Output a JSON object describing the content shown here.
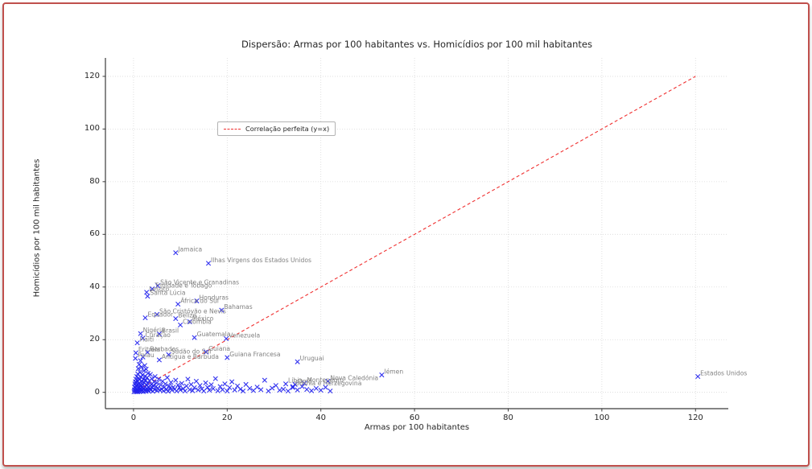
{
  "frame": {
    "border_color": "#c0504d"
  },
  "chart_data": {
    "type": "scatter",
    "title": "Dispersão: Armas por 100 habitantes vs. Homicídios por 100 mil habitantes",
    "xlabel": "Armas por 100 habitantes",
    "ylabel": "Homicídios por 100 mil habitantes",
    "xlim": [
      -6,
      127
    ],
    "ylim": [
      -6.2,
      127
    ],
    "xticks": [
      0,
      20,
      40,
      60,
      80,
      100,
      120
    ],
    "yticks": [
      0,
      20,
      40,
      60,
      80,
      100,
      120
    ],
    "grid": true,
    "legend_position": "upper left",
    "marker": "x",
    "marker_color": "#2222ee",
    "label_color": "#808080",
    "grid_color": "#d9d9d9",
    "axis_color": "#3b3b3b",
    "reference_line": {
      "label": "Correlação perfeita (y=x)",
      "from": [
        0,
        0
      ],
      "to": [
        120,
        120
      ],
      "color": "#f03030",
      "style": "dashed"
    },
    "labeled_points": [
      {
        "name": "Jamaica",
        "x": 9,
        "y": 53
      },
      {
        "name": "Ilhas Virgens dos Estados Unidos",
        "x": 16,
        "y": 49
      },
      {
        "name": "São Vicente e Granadinas",
        "x": 5.2,
        "y": 40.5
      },
      {
        "name": "Trinidade e Tobago",
        "x": 4,
        "y": 39.3
      },
      {
        "name": "Lesoto",
        "x": 2.8,
        "y": 38
      },
      {
        "name": "Santa Lúcia",
        "x": 3,
        "y": 36.5
      },
      {
        "name": "Honduras",
        "x": 13.5,
        "y": 34.7
      },
      {
        "name": "África do Sul",
        "x": 9.5,
        "y": 33.5
      },
      {
        "name": "Bahamas",
        "x": 18.8,
        "y": 31.2
      },
      {
        "name": "São Cristóvão e Nevis",
        "x": 5,
        "y": 29.6
      },
      {
        "name": "Equador",
        "x": 2.5,
        "y": 28.3
      },
      {
        "name": "Belize",
        "x": 9,
        "y": 28
      },
      {
        "name": "México",
        "x": 12,
        "y": 26.8
      },
      {
        "name": "Colômbia",
        "x": 10,
        "y": 25.6
      },
      {
        "name": "Nigéria",
        "x": 1.5,
        "y": 22.3
      },
      {
        "name": "Brasil",
        "x": 5.5,
        "y": 22.2
      },
      {
        "name": "Curaçao",
        "x": 2,
        "y": 20.6
      },
      {
        "name": "Guatemala",
        "x": 13,
        "y": 20.8
      },
      {
        "name": "Venezuela",
        "x": 19.8,
        "y": 20.4
      },
      {
        "name": "Haiti",
        "x": 0.8,
        "y": 18.8
      },
      {
        "name": "Eritreia",
        "x": 0.5,
        "y": 15
      },
      {
        "name": "Barbados",
        "x": 3,
        "y": 15.2
      },
      {
        "name": "Sudão do Sul",
        "x": 7.5,
        "y": 14.3
      },
      {
        "name": "Guiana",
        "x": 15.5,
        "y": 15.3
      },
      {
        "name": "Palau",
        "x": 0.4,
        "y": 12.9
      },
      {
        "name": "Antígua e Barbuda",
        "x": 5.5,
        "y": 12.3
      },
      {
        "name": "Guiana Francesa",
        "x": 20,
        "y": 13.2
      },
      {
        "name": "Uruguai",
        "x": 35,
        "y": 11.6
      },
      {
        "name": "Iémen",
        "x": 53,
        "y": 6.6
      },
      {
        "name": "Estados Unidos",
        "x": 120.5,
        "y": 6
      },
      {
        "name": "Nova Caledónia",
        "x": 41.5,
        "y": 4.2
      },
      {
        "name": "Líbia",
        "x": 32.5,
        "y": 3.2
      },
      {
        "name": "Omã",
        "x": 34.5,
        "y": 3
      },
      {
        "name": "Montenegro",
        "x": 36.5,
        "y": 3.4
      },
      {
        "name": "Bósnia e Herzegovina",
        "x": 34,
        "y": 2.2
      }
    ],
    "unlabeled_points": [
      [
        0.1,
        0.2
      ],
      [
        0.2,
        1
      ],
      [
        0.2,
        2
      ],
      [
        0.3,
        3.2
      ],
      [
        0.3,
        0.5
      ],
      [
        0.4,
        1.8
      ],
      [
        0.4,
        4
      ],
      [
        0.5,
        0.2
      ],
      [
        0.5,
        2.6
      ],
      [
        0.5,
        5
      ],
      [
        0.6,
        1.2
      ],
      [
        0.6,
        3.6
      ],
      [
        0.7,
        0.4
      ],
      [
        0.7,
        2.2
      ],
      [
        0.7,
        6
      ],
      [
        0.8,
        1
      ],
      [
        0.8,
        4.4
      ],
      [
        0.9,
        0.2
      ],
      [
        0.9,
        2.8
      ],
      [
        0.9,
        7
      ],
      [
        1,
        1.6
      ],
      [
        1,
        5.4
      ],
      [
        1,
        9
      ],
      [
        1.1,
        0.6
      ],
      [
        1.1,
        3.4
      ],
      [
        1.2,
        2
      ],
      [
        1.2,
        10.6
      ],
      [
        1.3,
        0.3
      ],
      [
        1.3,
        4.8
      ],
      [
        1.4,
        1.4
      ],
      [
        1.4,
        7.6
      ],
      [
        1.5,
        0.8
      ],
      [
        1.5,
        3
      ],
      [
        1.5,
        12
      ],
      [
        1.6,
        2.4
      ],
      [
        1.6,
        5.8
      ],
      [
        1.7,
        0.4
      ],
      [
        1.7,
        9.6
      ],
      [
        1.8,
        1.8
      ],
      [
        1.8,
        4.2
      ],
      [
        1.9,
        0.9
      ],
      [
        1.9,
        6.6
      ],
      [
        2,
        2.9
      ],
      [
        2,
        13.4
      ],
      [
        2.1,
        0.3
      ],
      [
        2.1,
        5
      ],
      [
        2.2,
        1.5
      ],
      [
        2.2,
        8.2
      ],
      [
        2.3,
        3.8
      ],
      [
        2.4,
        0.7
      ],
      [
        2.4,
        10.2
      ],
      [
        2.5,
        2.1
      ],
      [
        2.5,
        6.2
      ],
      [
        2.6,
        1.1
      ],
      [
        2.6,
        4.6
      ],
      [
        2.7,
        0.4
      ],
      [
        2.7,
        8.8
      ],
      [
        2.8,
        2.6
      ],
      [
        2.9,
        5.6
      ],
      [
        3,
        1
      ],
      [
        3,
        3.4
      ],
      [
        3.1,
        7.2
      ],
      [
        3.2,
        0.5
      ],
      [
        3.3,
        2
      ],
      [
        3.4,
        4.4
      ],
      [
        3.5,
        1.4
      ],
      [
        3.6,
        6.8
      ],
      [
        3.7,
        0.8
      ],
      [
        3.8,
        3
      ],
      [
        3.9,
        5.2
      ],
      [
        4,
        1.8
      ],
      [
        4.1,
        0.4
      ],
      [
        4.2,
        2.6
      ],
      [
        4.4,
        4
      ],
      [
        4.5,
        1
      ],
      [
        4.6,
        6
      ],
      [
        4.8,
        2.2
      ],
      [
        5,
        0.6
      ],
      [
        5,
        3.6
      ],
      [
        5.2,
        1.6
      ],
      [
        5.4,
        5
      ],
      [
        5.6,
        0.9
      ],
      [
        5.8,
        2.8
      ],
      [
        6,
        1.2
      ],
      [
        6.2,
        4.2
      ],
      [
        6.4,
        0.5
      ],
      [
        6.6,
        2
      ],
      [
        6.8,
        3.2
      ],
      [
        7,
        1
      ],
      [
        7.2,
        5.6
      ],
      [
        7.4,
        0.4
      ],
      [
        7.6,
        2.4
      ],
      [
        7.8,
        1.6
      ],
      [
        8,
        3.8
      ],
      [
        8.2,
        0.8
      ],
      [
        8.5,
        2
      ],
      [
        8.8,
        1.2
      ],
      [
        9,
        4.6
      ],
      [
        9.2,
        0.5
      ],
      [
        9.5,
        2.8
      ],
      [
        9.8,
        1.8
      ],
      [
        10,
        0.9
      ],
      [
        10.3,
        3.4
      ],
      [
        10.6,
        1.4
      ],
      [
        11,
        0.5
      ],
      [
        11.3,
        2.4
      ],
      [
        11.6,
        5
      ],
      [
        12,
        1
      ],
      [
        12.3,
        3
      ],
      [
        12.6,
        0.6
      ],
      [
        13,
        1.8
      ],
      [
        13.4,
        4.2
      ],
      [
        13.8,
        0.9
      ],
      [
        14.2,
        2.6
      ],
      [
        14.6,
        1.3
      ],
      [
        15,
        0.5
      ],
      [
        15.4,
        3.6
      ],
      [
        15.8,
        1.9
      ],
      [
        16.2,
        0.8
      ],
      [
        16.6,
        2.9
      ],
      [
        17,
        1.4
      ],
      [
        17.5,
        5.2
      ],
      [
        18,
        0.6
      ],
      [
        18.5,
        2.2
      ],
      [
        19,
        1
      ],
      [
        19.5,
        3.2
      ],
      [
        20,
        0.5
      ],
      [
        20.5,
        1.8
      ],
      [
        21,
        4
      ],
      [
        21.6,
        0.9
      ],
      [
        22.2,
        2.4
      ],
      [
        22.8,
        1.2
      ],
      [
        23.4,
        0.5
      ],
      [
        24,
        3
      ],
      [
        24.8,
        1.5
      ],
      [
        25.6,
        0.7
      ],
      [
        26.4,
        2
      ],
      [
        27.2,
        1
      ],
      [
        28,
        4.6
      ],
      [
        28.8,
        0.5
      ],
      [
        29.6,
        1.6
      ],
      [
        30.4,
        2.6
      ],
      [
        31.2,
        0.8
      ],
      [
        32,
        1.2
      ],
      [
        33,
        0.5
      ],
      [
        34,
        1.8
      ],
      [
        35,
        0.9
      ],
      [
        36,
        2.2
      ],
      [
        37,
        1.1
      ],
      [
        38,
        0.6
      ],
      [
        39,
        1.5
      ],
      [
        40,
        0.8
      ],
      [
        41,
        1.9
      ],
      [
        42,
        0.5
      ]
    ]
  }
}
